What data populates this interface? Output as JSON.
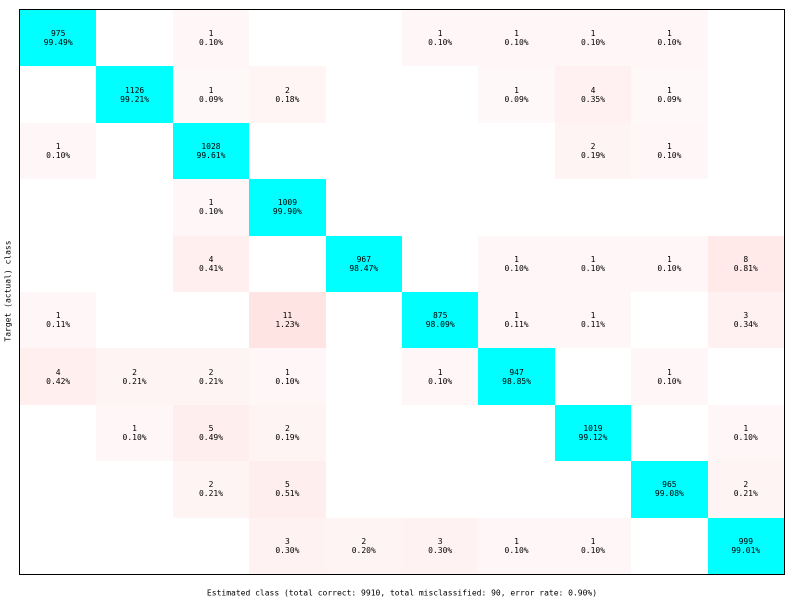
{
  "chart_data": {
    "type": "heatmap",
    "subtype": "confusion-matrix",
    "xlabel": "Estimated class (total correct: 9910, total misclassified: 90, error rate: 0.90%)",
    "ylabel": "Target (actual) class",
    "grid": false,
    "colors": {
      "diagonal": "#00ffff",
      "off_diagonal_max": "#ffe4e4",
      "background": "#ffffff",
      "border": "#000000"
    },
    "rows": 10,
    "cols": 10,
    "cells": [
      {
        "row": 0,
        "col": 0,
        "count": 975,
        "percent": "99.49%"
      },
      {
        "row": 0,
        "col": 2,
        "count": 1,
        "percent": "0.10%"
      },
      {
        "row": 0,
        "col": 5,
        "count": 1,
        "percent": "0.10%"
      },
      {
        "row": 0,
        "col": 6,
        "count": 1,
        "percent": "0.10%"
      },
      {
        "row": 0,
        "col": 7,
        "count": 1,
        "percent": "0.10%"
      },
      {
        "row": 0,
        "col": 8,
        "count": 1,
        "percent": "0.10%"
      },
      {
        "row": 1,
        "col": 1,
        "count": 1126,
        "percent": "99.21%"
      },
      {
        "row": 1,
        "col": 2,
        "count": 1,
        "percent": "0.09%"
      },
      {
        "row": 1,
        "col": 3,
        "count": 2,
        "percent": "0.18%"
      },
      {
        "row": 1,
        "col": 6,
        "count": 1,
        "percent": "0.09%"
      },
      {
        "row": 1,
        "col": 7,
        "count": 4,
        "percent": "0.35%"
      },
      {
        "row": 1,
        "col": 8,
        "count": 1,
        "percent": "0.09%"
      },
      {
        "row": 2,
        "col": 0,
        "count": 1,
        "percent": "0.10%"
      },
      {
        "row": 2,
        "col": 2,
        "count": 1028,
        "percent": "99.61%"
      },
      {
        "row": 2,
        "col": 7,
        "count": 2,
        "percent": "0.19%"
      },
      {
        "row": 2,
        "col": 8,
        "count": 1,
        "percent": "0.10%"
      },
      {
        "row": 3,
        "col": 2,
        "count": 1,
        "percent": "0.10%"
      },
      {
        "row": 3,
        "col": 3,
        "count": 1009,
        "percent": "99.90%"
      },
      {
        "row": 4,
        "col": 2,
        "count": 4,
        "percent": "0.41%"
      },
      {
        "row": 4,
        "col": 4,
        "count": 967,
        "percent": "98.47%"
      },
      {
        "row": 4,
        "col": 6,
        "count": 1,
        "percent": "0.10%"
      },
      {
        "row": 4,
        "col": 7,
        "count": 1,
        "percent": "0.10%"
      },
      {
        "row": 4,
        "col": 8,
        "count": 1,
        "percent": "0.10%"
      },
      {
        "row": 4,
        "col": 9,
        "count": 8,
        "percent": "0.81%"
      },
      {
        "row": 5,
        "col": 0,
        "count": 1,
        "percent": "0.11%"
      },
      {
        "row": 5,
        "col": 3,
        "count": 11,
        "percent": "1.23%"
      },
      {
        "row": 5,
        "col": 5,
        "count": 875,
        "percent": "98.09%"
      },
      {
        "row": 5,
        "col": 6,
        "count": 1,
        "percent": "0.11%"
      },
      {
        "row": 5,
        "col": 7,
        "count": 1,
        "percent": "0.11%"
      },
      {
        "row": 5,
        "col": 9,
        "count": 3,
        "percent": "0.34%"
      },
      {
        "row": 6,
        "col": 0,
        "count": 4,
        "percent": "0.42%"
      },
      {
        "row": 6,
        "col": 1,
        "count": 2,
        "percent": "0.21%"
      },
      {
        "row": 6,
        "col": 2,
        "count": 2,
        "percent": "0.21%"
      },
      {
        "row": 6,
        "col": 3,
        "count": 1,
        "percent": "0.10%"
      },
      {
        "row": 6,
        "col": 5,
        "count": 1,
        "percent": "0.10%"
      },
      {
        "row": 6,
        "col": 6,
        "count": 947,
        "percent": "98.85%"
      },
      {
        "row": 6,
        "col": 8,
        "count": 1,
        "percent": "0.10%"
      },
      {
        "row": 7,
        "col": 1,
        "count": 1,
        "percent": "0.10%"
      },
      {
        "row": 7,
        "col": 2,
        "count": 5,
        "percent": "0.49%"
      },
      {
        "row": 7,
        "col": 3,
        "count": 2,
        "percent": "0.19%"
      },
      {
        "row": 7,
        "col": 7,
        "count": 1019,
        "percent": "99.12%"
      },
      {
        "row": 7,
        "col": 9,
        "count": 1,
        "percent": "0.10%"
      },
      {
        "row": 8,
        "col": 2,
        "count": 2,
        "percent": "0.21%"
      },
      {
        "row": 8,
        "col": 3,
        "count": 5,
        "percent": "0.51%"
      },
      {
        "row": 8,
        "col": 8,
        "count": 965,
        "percent": "99.08%"
      },
      {
        "row": 8,
        "col": 9,
        "count": 2,
        "percent": "0.21%"
      },
      {
        "row": 9,
        "col": 3,
        "count": 3,
        "percent": "0.30%"
      },
      {
        "row": 9,
        "col": 4,
        "count": 2,
        "percent": "0.20%"
      },
      {
        "row": 9,
        "col": 5,
        "count": 3,
        "percent": "0.30%"
      },
      {
        "row": 9,
        "col": 6,
        "count": 1,
        "percent": "0.10%"
      },
      {
        "row": 9,
        "col": 7,
        "count": 1,
        "percent": "0.10%"
      },
      {
        "row": 9,
        "col": 9,
        "count": 999,
        "percent": "99.01%"
      }
    ]
  }
}
